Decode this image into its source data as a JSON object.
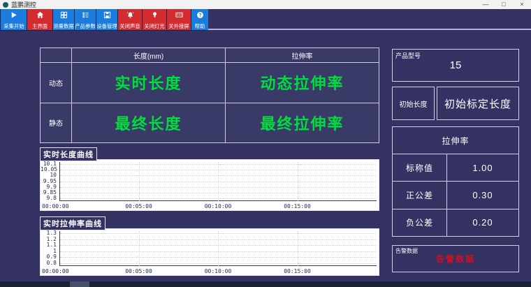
{
  "window": {
    "title": "蓝鹏测控",
    "controls": {
      "minimize": "—",
      "maximize": "□",
      "close": "×"
    }
  },
  "toolbar": {
    "buttons": [
      {
        "label": "采集开始",
        "icon": "play-icon",
        "style": "blue"
      },
      {
        "label": "主界面",
        "icon": "home-icon",
        "style": "red"
      },
      {
        "label": "测量数据",
        "icon": "data-grid-icon",
        "style": "blue"
      },
      {
        "label": "产品参数",
        "icon": "product-params-icon",
        "style": "blue"
      },
      {
        "label": "设备管理",
        "icon": "device-manage-icon",
        "style": "blue"
      },
      {
        "label": "关闭声音",
        "icon": "alarm-bell-icon",
        "style": "red"
      },
      {
        "label": "关闭灯光",
        "icon": "lamp-icon",
        "style": "red"
      },
      {
        "label": "关外接屏",
        "icon": "external-screen-icon",
        "style": "red"
      },
      {
        "label": "帮助",
        "icon": "help-icon",
        "style": "blue"
      }
    ]
  },
  "measure_table": {
    "corner": "",
    "col_headers": [
      "长度(mm)",
      "拉伸率"
    ],
    "rows": [
      {
        "label": "动态",
        "values": [
          "实时长度",
          "动态拉伸率"
        ]
      },
      {
        "label": "静态",
        "values": [
          "最终长度",
          "最终拉伸率"
        ]
      }
    ]
  },
  "chart_data": [
    {
      "type": "line",
      "title": "实时长度曲线",
      "y_ticks": [
        "10.1",
        "10.05",
        "10",
        "9.95",
        "9.9",
        "9.85",
        "9.8"
      ],
      "ylim": [
        9.8,
        10.1
      ],
      "x_ticks": [
        "00:00:00",
        "00:05:00",
        "00:10:00",
        "00:15:00"
      ],
      "xlim_minutes": [
        0,
        20
      ],
      "grid": true,
      "legend": "none",
      "series": []
    },
    {
      "type": "line",
      "title": "实时拉伸率曲线",
      "y_ticks": [
        "1.3",
        "1.2",
        "1.1",
        "1",
        "0.9",
        "0.8"
      ],
      "ylim": [
        0.8,
        1.3
      ],
      "x_ticks": [
        "00:00:00",
        "00:05:00",
        "00:10:00",
        "00:15:00"
      ],
      "xlim_minutes": [
        0,
        20
      ],
      "grid": true,
      "legend": "none",
      "series": []
    }
  ],
  "right_panel": {
    "product_model": {
      "label": "产品型号",
      "value": "15"
    },
    "initial_length": {
      "label": "初始长度",
      "value": "初始标定长度"
    },
    "elongation": {
      "title": "拉伸率",
      "rows": [
        {
          "label": "标称值",
          "value": "1.00"
        },
        {
          "label": "正公差",
          "value": "0.30"
        },
        {
          "label": "负公差",
          "value": "0.20"
        }
      ]
    },
    "alarm": {
      "label": "告警数据",
      "value": "告警数据"
    }
  },
  "colors": {
    "accent_blue": "#1b7ce0",
    "accent_red": "#d32b2f",
    "value_green": "#00dd3c",
    "alarm_red": "#cc1122",
    "background": "#333263"
  }
}
